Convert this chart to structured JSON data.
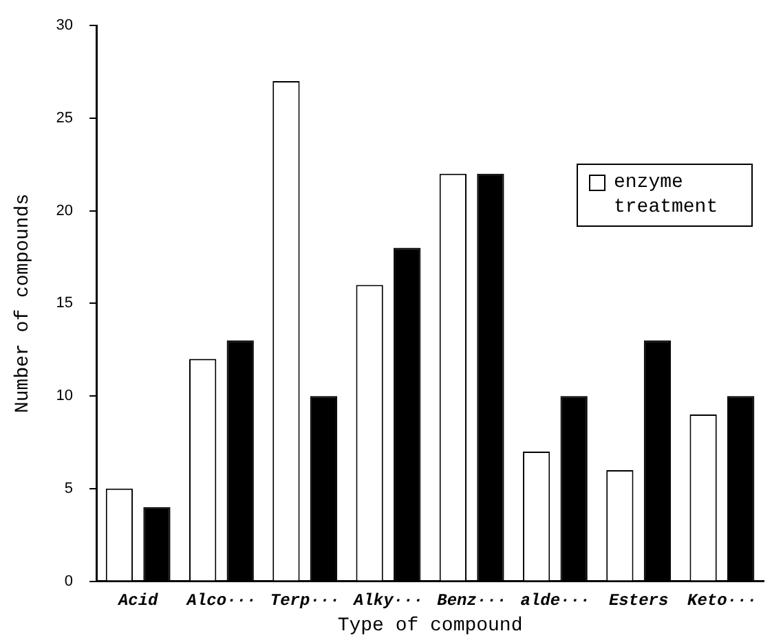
{
  "chart_data": {
    "type": "bar",
    "xlabel": "Type of compound",
    "ylabel": "Number of compounds",
    "categories": [
      "Acid",
      "Alco···",
      "Terp···",
      "Alky···",
      "Benz···",
      "alde···",
      "Esters",
      "Keto···"
    ],
    "series": [
      {
        "name": "enzyme treatment",
        "color": "#ffffff",
        "values": [
          5,
          12,
          27,
          16,
          22,
          7,
          6,
          9
        ]
      },
      {
        "color": "#000000",
        "values": [
          4,
          13,
          10,
          18,
          22,
          10,
          13,
          10
        ]
      }
    ],
    "ylim": [
      0,
      30
    ],
    "yticks": [
      0,
      5,
      10,
      15,
      20,
      25,
      30
    ],
    "grid": false,
    "legend": "top right"
  }
}
